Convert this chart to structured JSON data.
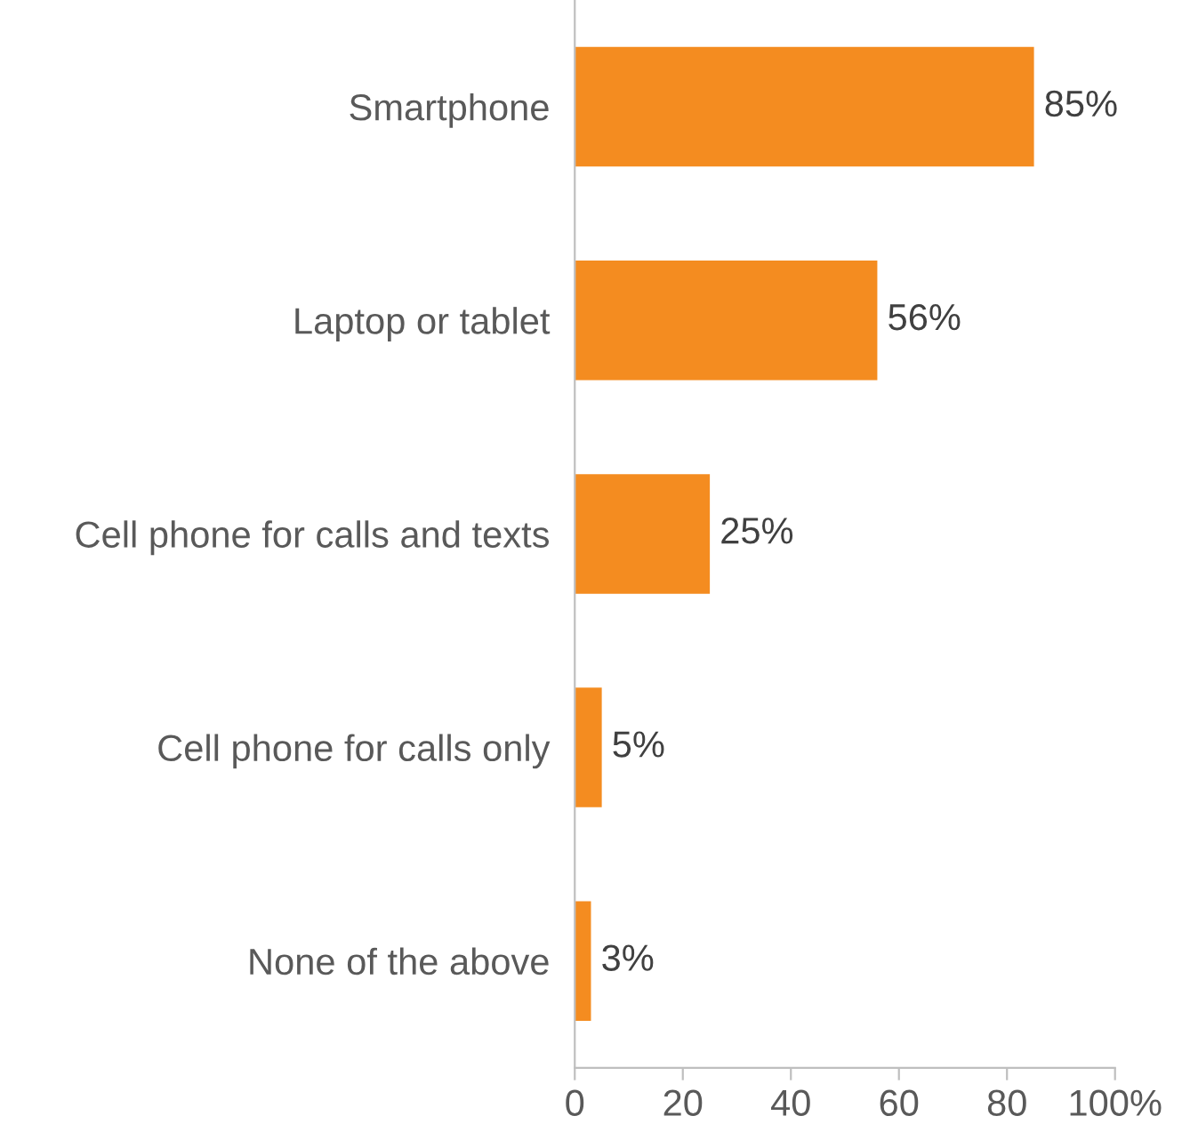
{
  "chart_data": {
    "type": "bar",
    "orientation": "horizontal",
    "categories": [
      "Smartphone",
      "Laptop or tablet",
      "Cell phone for calls and texts",
      "Cell phone for calls only",
      "None of the above"
    ],
    "values": [
      85,
      56,
      25,
      5,
      3
    ],
    "value_labels": [
      "85%",
      "56%",
      "25%",
      "5%",
      "3%"
    ],
    "color": "#f48c20",
    "xlim": [
      0,
      100
    ],
    "xticks": [
      0,
      20,
      40,
      60,
      80,
      {
        "value": 100,
        "label": "100%"
      }
    ],
    "grid": false,
    "legend": false
  }
}
